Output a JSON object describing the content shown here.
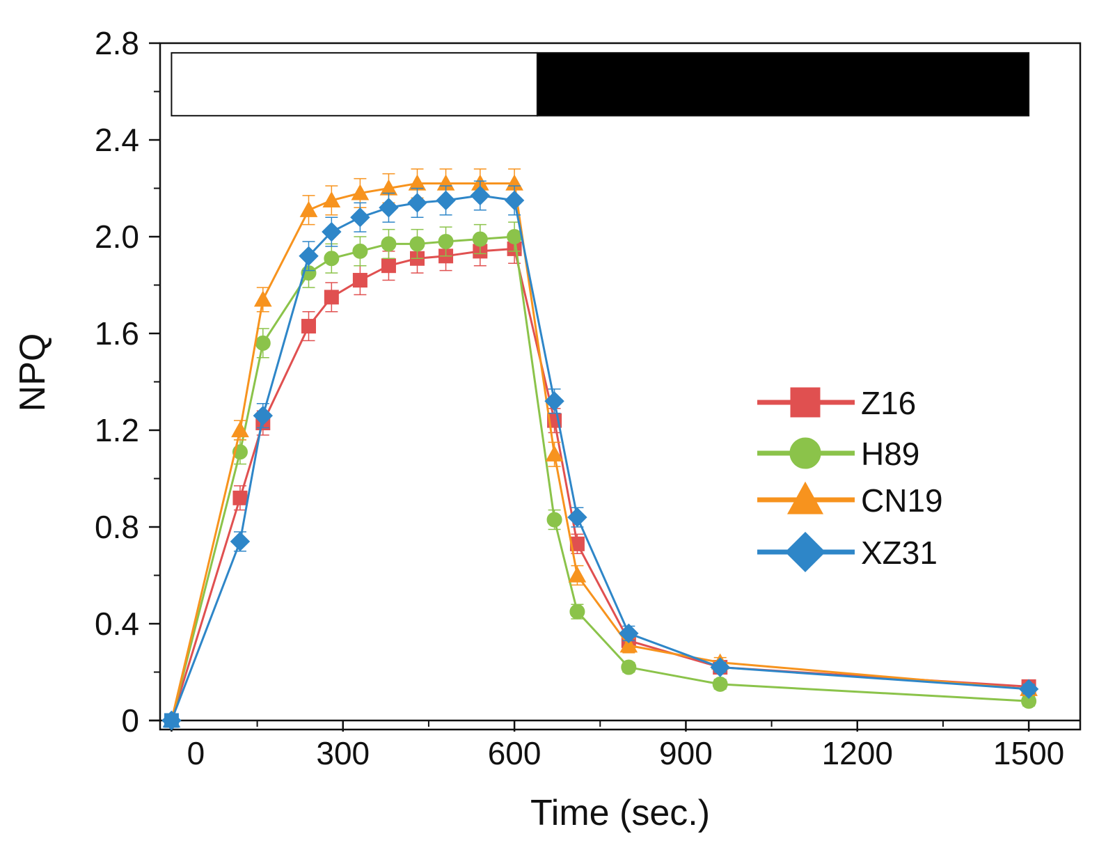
{
  "chart_data": {
    "type": "line",
    "title": "",
    "xlabel": "Time (sec.)",
    "ylabel": "NPQ",
    "xlim": [
      -20,
      1590
    ],
    "ylim": [
      0,
      2.8
    ],
    "xtick_values": [
      0,
      300,
      600,
      900,
      1200,
      1500
    ],
    "xtick_labels": [
      "0",
      "300",
      "600",
      "900",
      "1200",
      "1500"
    ],
    "ytick_values": [
      0,
      0.4,
      0.8,
      1.2,
      1.6,
      2.0,
      2.4,
      2.8
    ],
    "ytick_labels": [
      "0",
      "0.4",
      "0.8",
      "1.2",
      "1.6",
      "2.0",
      "2.4",
      "2.8"
    ],
    "grid": false,
    "legend_position": "center-right",
    "light_bar": {
      "light_x": [
        0,
        640
      ],
      "dark_x": [
        640,
        1500
      ],
      "y": [
        2.5,
        2.76
      ],
      "colors": {
        "light": "#ffffff",
        "dark": "#000000"
      }
    },
    "x": [
      0,
      120,
      160,
      240,
      280,
      330,
      380,
      430,
      480,
      540,
      600,
      670,
      710,
      800,
      960,
      1500
    ],
    "series": [
      {
        "name": "Z16",
        "marker": "square",
        "color": "#e05050",
        "values": [
          0,
          0.92,
          1.23,
          1.63,
          1.75,
          1.82,
          1.88,
          1.91,
          1.92,
          1.94,
          1.95,
          1.24,
          0.73,
          0.33,
          0.22,
          0.14
        ],
        "errors": [
          0,
          0.05,
          0.05,
          0.06,
          0.06,
          0.06,
          0.06,
          0.06,
          0.06,
          0.06,
          0.06,
          0.05,
          0.04,
          0.03,
          0.02,
          0.02
        ]
      },
      {
        "name": "H89",
        "marker": "circle",
        "color": "#8bc34a",
        "values": [
          0,
          1.11,
          1.56,
          1.85,
          1.91,
          1.94,
          1.97,
          1.97,
          1.98,
          1.99,
          2.0,
          0.83,
          0.45,
          0.22,
          0.15,
          0.08
        ],
        "errors": [
          0,
          0.05,
          0.06,
          0.06,
          0.06,
          0.06,
          0.06,
          0.06,
          0.06,
          0.06,
          0.06,
          0.04,
          0.03,
          0.02,
          0.02,
          0.02
        ]
      },
      {
        "name": "CN19",
        "marker": "triangle",
        "color": "#f7931e",
        "values": [
          0,
          1.2,
          1.74,
          2.11,
          2.15,
          2.18,
          2.2,
          2.22,
          2.22,
          2.22,
          2.22,
          1.1,
          0.6,
          0.31,
          0.24,
          0.13
        ],
        "errors": [
          0,
          0.04,
          0.05,
          0.06,
          0.06,
          0.06,
          0.06,
          0.06,
          0.06,
          0.06,
          0.06,
          0.05,
          0.04,
          0.03,
          0.02,
          0.02
        ]
      },
      {
        "name": "XZ31",
        "marker": "diamond",
        "color": "#2e86c8",
        "values": [
          0,
          0.74,
          1.26,
          1.92,
          2.02,
          2.08,
          2.12,
          2.14,
          2.15,
          2.17,
          2.15,
          1.32,
          0.84,
          0.36,
          0.22,
          0.13
        ],
        "errors": [
          0,
          0.04,
          0.05,
          0.06,
          0.06,
          0.06,
          0.06,
          0.06,
          0.06,
          0.06,
          0.06,
          0.05,
          0.04,
          0.03,
          0.02,
          0.02
        ]
      }
    ]
  }
}
